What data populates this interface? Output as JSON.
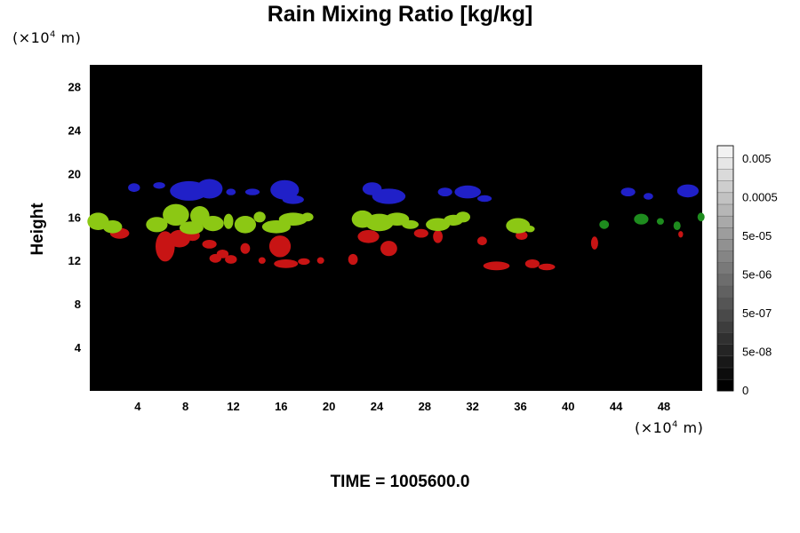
{
  "chart_data": {
    "type": "heatmap",
    "title": "Rain Mixing Ratio [kg/kg]",
    "ylabel": "Height",
    "xlabel": "",
    "y_unit_prefix": "(×10",
    "y_unit_exp": "4",
    "y_unit_suffix": " m)",
    "x_unit_prefix": "(×10",
    "x_unit_exp": "4",
    "x_unit_suffix": " m)",
    "xlim": [
      0,
      51.2
    ],
    "ylim": [
      0,
      30
    ],
    "x_ticks": [
      "4",
      "8",
      "12",
      "16",
      "20",
      "24",
      "28",
      "32",
      "36",
      "40",
      "44",
      "48"
    ],
    "y_ticks": [
      "4",
      "8",
      "12",
      "16",
      "20",
      "24",
      "28"
    ],
    "background_color": "#000000",
    "colorbar": {
      "ticks": [
        "0",
        "5e-08",
        "5e-07",
        "5e-06",
        "5e-05",
        "0.0005",
        "0.005"
      ],
      "levels": 21,
      "color_min": "#000000",
      "color_max": "#f2f2f2"
    },
    "regions": [
      {
        "layer": "blue",
        "color": "#2020c8",
        "blobs": [
          [
            3.7,
            18.7,
            0.5,
            0.4
          ],
          [
            5.8,
            18.9,
            0.5,
            0.3
          ],
          [
            8.3,
            18.4,
            1.6,
            0.9
          ],
          [
            10.0,
            18.6,
            1.1,
            0.9
          ],
          [
            11.8,
            18.3,
            0.4,
            0.3
          ],
          [
            13.6,
            18.3,
            0.6,
            0.3
          ],
          [
            16.3,
            18.5,
            1.2,
            0.9
          ],
          [
            17.0,
            17.6,
            0.9,
            0.4
          ],
          [
            23.6,
            18.6,
            0.8,
            0.6
          ],
          [
            25.0,
            17.9,
            1.4,
            0.7
          ],
          [
            29.7,
            18.3,
            0.6,
            0.4
          ],
          [
            31.6,
            18.3,
            1.1,
            0.6
          ],
          [
            33.0,
            17.7,
            0.6,
            0.3
          ],
          [
            45.0,
            18.3,
            0.6,
            0.4
          ],
          [
            46.7,
            17.9,
            0.4,
            0.3
          ],
          [
            50.0,
            18.4,
            0.9,
            0.6
          ]
        ]
      },
      {
        "layer": "red",
        "color": "#c81414",
        "blobs": [
          [
            2.5,
            14.5,
            0.8,
            0.5
          ],
          [
            6.3,
            13.3,
            0.8,
            1.4
          ],
          [
            7.5,
            14.0,
            0.9,
            0.8
          ],
          [
            8.6,
            14.3,
            0.6,
            0.5
          ],
          [
            10.0,
            13.5,
            0.6,
            0.4
          ],
          [
            10.5,
            12.2,
            0.5,
            0.4
          ],
          [
            11.1,
            12.6,
            0.5,
            0.4
          ],
          [
            11.8,
            12.1,
            0.5,
            0.4
          ],
          [
            13.0,
            13.1,
            0.4,
            0.5
          ],
          [
            14.4,
            12.0,
            0.3,
            0.3
          ],
          [
            15.9,
            13.3,
            0.9,
            1.0
          ],
          [
            16.4,
            11.7,
            1.0,
            0.4
          ],
          [
            17.9,
            11.9,
            0.5,
            0.3
          ],
          [
            19.3,
            12.0,
            0.3,
            0.3
          ],
          [
            22.0,
            12.1,
            0.4,
            0.5
          ],
          [
            23.3,
            14.2,
            0.9,
            0.6
          ],
          [
            25.0,
            13.1,
            0.7,
            0.7
          ],
          [
            27.7,
            14.5,
            0.6,
            0.4
          ],
          [
            29.1,
            14.2,
            0.4,
            0.6
          ],
          [
            32.8,
            13.8,
            0.4,
            0.4
          ],
          [
            34.0,
            11.5,
            1.1,
            0.4
          ],
          [
            36.1,
            14.3,
            0.5,
            0.4
          ],
          [
            37.0,
            11.7,
            0.6,
            0.4
          ],
          [
            38.2,
            11.4,
            0.7,
            0.3
          ],
          [
            42.2,
            13.6,
            0.3,
            0.6
          ],
          [
            49.4,
            14.4,
            0.2,
            0.3
          ]
        ]
      },
      {
        "layer": "green",
        "color": "#8cc814",
        "blobs": [
          [
            0.7,
            15.6,
            0.9,
            0.8
          ],
          [
            1.9,
            15.1,
            0.8,
            0.6
          ],
          [
            5.6,
            15.3,
            0.9,
            0.7
          ],
          [
            7.2,
            16.2,
            1.1,
            1.0
          ],
          [
            8.5,
            15.0,
            1.0,
            0.6
          ],
          [
            9.2,
            16.1,
            0.8,
            0.9
          ],
          [
            10.3,
            15.4,
            0.9,
            0.7
          ],
          [
            11.6,
            15.6,
            0.4,
            0.7
          ],
          [
            13.0,
            15.3,
            0.9,
            0.8
          ],
          [
            14.2,
            16.0,
            0.5,
            0.5
          ],
          [
            15.6,
            15.1,
            1.2,
            0.6
          ],
          [
            17.0,
            15.8,
            1.2,
            0.6
          ],
          [
            18.2,
            16.0,
            0.5,
            0.4
          ],
          [
            22.8,
            15.8,
            0.9,
            0.8
          ],
          [
            24.2,
            15.5,
            1.2,
            0.8
          ],
          [
            25.7,
            15.8,
            1.0,
            0.6
          ],
          [
            26.8,
            15.3,
            0.7,
            0.4
          ],
          [
            29.1,
            15.3,
            1.0,
            0.6
          ],
          [
            30.4,
            15.7,
            0.8,
            0.5
          ],
          [
            31.2,
            16.0,
            0.6,
            0.5
          ],
          [
            35.8,
            15.2,
            1.0,
            0.7
          ],
          [
            36.8,
            14.9,
            0.4,
            0.3
          ]
        ]
      },
      {
        "layer": "darkgreen",
        "color": "#1e8c1e",
        "blobs": [
          [
            43.0,
            15.3,
            0.4,
            0.4
          ],
          [
            46.1,
            15.8,
            0.6,
            0.5
          ],
          [
            47.7,
            15.6,
            0.3,
            0.3
          ],
          [
            49.1,
            15.2,
            0.3,
            0.4
          ],
          [
            51.1,
            16.0,
            0.3,
            0.4
          ]
        ]
      }
    ]
  },
  "footer": {
    "time_label": "TIME = 1005600.0"
  }
}
